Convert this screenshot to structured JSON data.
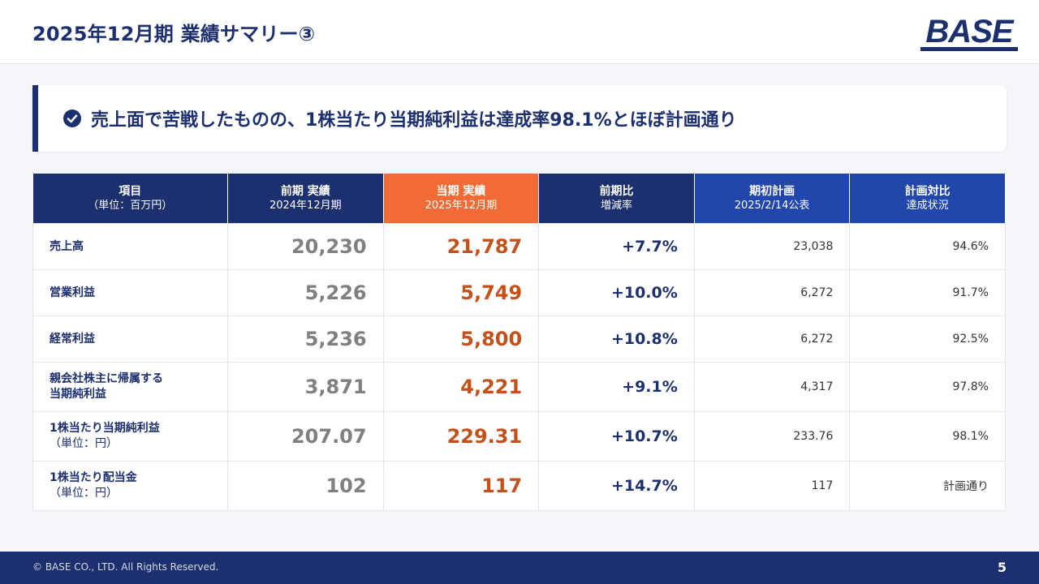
{
  "header": {
    "title": "2025年12月期 業績サマリー③",
    "logo_text": "BASE"
  },
  "callout": {
    "icon": "check-circle-icon",
    "text": "売上面で苦戦したものの、1株当たり当期純利益は達成率98.1%とほぼ計画通り"
  },
  "table": {
    "headers": [
      {
        "line1": "項目",
        "line2": "（単位：百万円）"
      },
      {
        "line1": "前期 実績",
        "line2": "2024年12月期"
      },
      {
        "line1": "当期 実績",
        "line2": "2025年12月期"
      },
      {
        "line1": "前期比",
        "line2": "増減率"
      },
      {
        "line1": "期初計画",
        "line2": "2025/2/14公表"
      },
      {
        "line1": "計画対比",
        "line2": "達成状況"
      }
    ],
    "rows": [
      {
        "label1": "売上高",
        "label2": "",
        "prev": "20,230",
        "current": "21,787",
        "yoy": "+7.7%",
        "plan": "23,038",
        "achievement": "94.6%"
      },
      {
        "label1": "営業利益",
        "label2": "",
        "prev": "5,226",
        "current": "5,749",
        "yoy": "+10.0%",
        "plan": "6,272",
        "achievement": "91.7%"
      },
      {
        "label1": "経常利益",
        "label2": "",
        "prev": "5,236",
        "current": "5,800",
        "yoy": "+10.8%",
        "plan": "6,272",
        "achievement": "92.5%"
      },
      {
        "label1": "親会社株主に帰属する",
        "label1b": "当期純利益",
        "label2": "",
        "prev": "3,871",
        "current": "4,221",
        "yoy": "+9.1%",
        "plan": "4,317",
        "achievement": "97.8%"
      },
      {
        "label1": "1株当たり当期純利益",
        "label2": "（単位：円）",
        "prev": "207.07",
        "current": "229.31",
        "yoy": "+10.7%",
        "plan": "233.76",
        "achievement": "98.1%"
      },
      {
        "label1": "1株当たり配当金",
        "label2": "（単位：円）",
        "prev": "102",
        "current": "117",
        "yoy": "+14.7%",
        "plan": "117",
        "achievement": "計画通り"
      }
    ]
  },
  "footer": {
    "copyright": "© BASE CO., LTD. All Rights Reserved.",
    "page_number": "5"
  },
  "colors": {
    "navy": "#1c2f6e",
    "orange": "#f26b36",
    "blue": "#2147ad",
    "current_value": "#c4501a"
  }
}
